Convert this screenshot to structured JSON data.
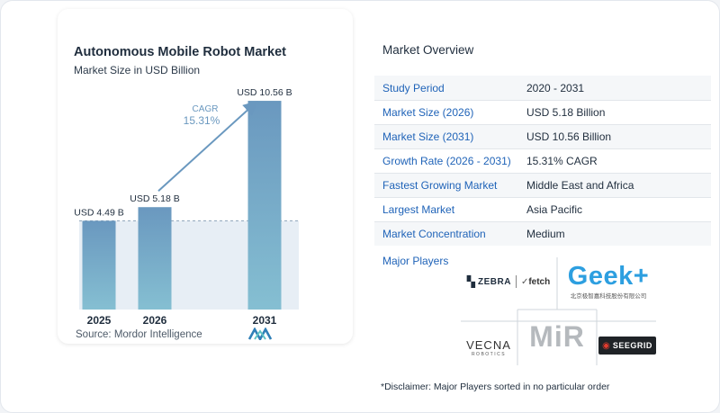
{
  "chart_data": {
    "type": "bar",
    "title": "Autonomous Mobile Robot Market",
    "subtitle": "Market Size in USD Billion",
    "categories": [
      "2025",
      "2026",
      "2031"
    ],
    "values": [
      4.49,
      5.18,
      10.56
    ],
    "value_labels": [
      "USD 4.49 B",
      "USD 5.18 B",
      "USD 10.56 B"
    ],
    "cagr_label": "CAGR",
    "cagr_value": "15.31%",
    "ylim": [
      0,
      11.2
    ],
    "bar_color": "#6a98bf",
    "bar_color_light": "#85bfd2"
  },
  "source": "Source:  Mordor Intelligence",
  "overview": {
    "title": "Market Overview",
    "rows": [
      {
        "label": "Study Period",
        "value": "2020 - 2031"
      },
      {
        "label": "Market Size (2026)",
        "value": "USD 5.18 Billion"
      },
      {
        "label": "Market Size (2031)",
        "value": "USD 10.56 Billion"
      },
      {
        "label": "Growth Rate (2026 - 2031)",
        "value": "15.31% CAGR"
      },
      {
        "label": "Fastest Growing Market",
        "value": "Middle East and Africa"
      },
      {
        "label": "Largest Market",
        "value": "Asia Pacific"
      },
      {
        "label": "Market Concentration",
        "value": "Medium"
      }
    ]
  },
  "players": {
    "label": "Major Players",
    "zebra": "ZEBRA",
    "fetch": "fetch",
    "geek": "Geek+",
    "geek_sub": "北京极智嘉科技股份有限公司",
    "vecna": "VECNA",
    "vecna_sub": "ROBOTICS",
    "mir": "MiR",
    "seegrid": "SEEGRID"
  },
  "disclaimer": "*Disclaimer: Major Players sorted in no particular order"
}
